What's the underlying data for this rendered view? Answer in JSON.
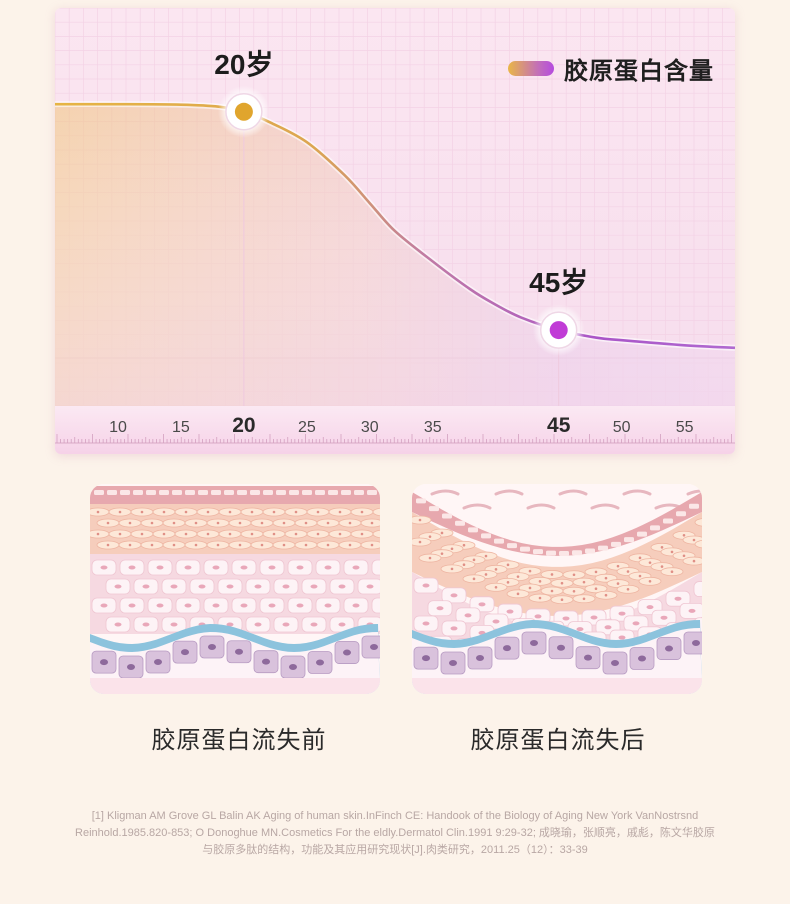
{
  "chart_data": {
    "type": "area",
    "series": [
      {
        "name": "胶原蛋白含量"
      }
    ],
    "x_ticks": [
      10,
      15,
      20,
      25,
      30,
      35,
      45,
      50,
      55
    ],
    "x_highlight": [
      20,
      45
    ],
    "xlim": [
      5,
      59
    ],
    "curve": {
      "x": [
        5,
        10,
        15,
        18,
        20,
        22,
        25,
        28,
        30,
        32,
        35,
        38,
        40,
        42,
        45,
        48,
        50,
        55,
        59
      ],
      "y": [
        100,
        100,
        99.8,
        99,
        97,
        93,
        85,
        72,
        61,
        50,
        38,
        27,
        21,
        16,
        11,
        8,
        7,
        5,
        4
      ]
    },
    "ylim": [
      0,
      130
    ],
    "markers": [
      {
        "label": "20岁",
        "x": 20,
        "y": 97,
        "color": "#e0a52d"
      },
      {
        "label": "45岁",
        "x": 45,
        "y": 11,
        "color": "#c03cd6"
      }
    ],
    "legend_position": "top-right",
    "colors": {
      "start": "#e9b646",
      "mid": "#c36fb8",
      "end": "#b54be0"
    }
  },
  "panels": [
    {
      "caption": "胶原蛋白流失前",
      "state": "before"
    },
    {
      "caption": "胶原蛋白流失后",
      "state": "after"
    }
  ],
  "reference": {
    "line1": "[1]  Kligman AM Grove GL Balin AK Aging of human skin.InFinch CE: Handook of the Biology of Aging New York VanNostrsnd",
    "line2": "Reinhold.1985.820-853; O Donoghue MN.Cosmetics For the eldly.Dermatol Clin.1991 9:29-32; 成晓瑜，张顺亮，戚彪，陈文华胶原",
    "line3": "与胶原多肽的结构，功能及其应用研究现状[J].肉类研究，2011.25（12）：33-39"
  }
}
